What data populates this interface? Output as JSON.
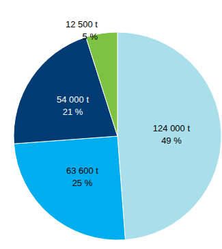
{
  "chart_data": {
    "type": "pie",
    "values": [
      124000,
      63600,
      54000,
      12500
    ],
    "value_labels": [
      "124 000 t",
      "63 600 t",
      "54 000 t",
      "12 500 t"
    ],
    "percentages": [
      49,
      25,
      21,
      5
    ],
    "percentage_labels": [
      "49 %",
      "25 %",
      "21 %",
      "5 %"
    ],
    "colors": [
      "#a9dfeb",
      "#00adef",
      "#003b73",
      "#7dc242"
    ],
    "data_labels": true
  }
}
